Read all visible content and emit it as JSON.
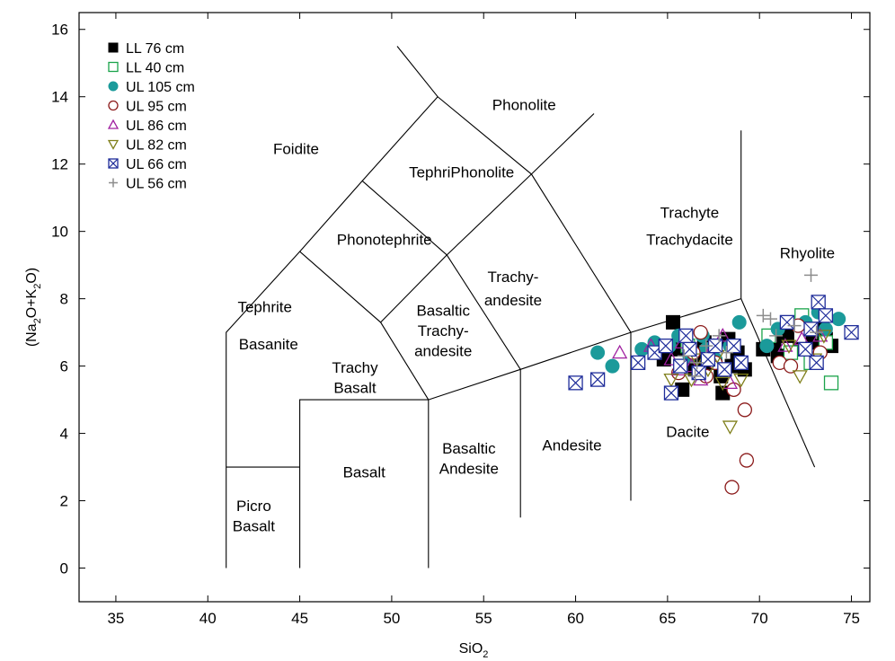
{
  "chart_data": {
    "type": "scatter",
    "xlabel": "SiO",
    "xlabel_sub": "2",
    "ylabel_parts": [
      "(Na",
      "2",
      "O+K",
      "2",
      "O)"
    ],
    "xlim": [
      33,
      76
    ],
    "ylim": [
      -1,
      16.5
    ],
    "x_ticks": [
      35,
      40,
      45,
      50,
      55,
      60,
      65,
      70,
      75
    ],
    "y_ticks": [
      0,
      2,
      4,
      6,
      8,
      10,
      12,
      14,
      16
    ],
    "grid": false,
    "legend_position": "top-left",
    "field_boundaries": [
      [
        [
          41,
          0
        ],
        [
          41,
          7
        ],
        [
          45,
          9.4
        ],
        [
          48.4,
          11.5
        ],
        [
          52.5,
          14
        ],
        [
          57.6,
          11.7
        ],
        [
          63,
          7
        ],
        [
          69,
          8
        ],
        [
          69,
          13
        ]
      ],
      [
        [
          41,
          3
        ],
        [
          45,
          3
        ]
      ],
      [
        [
          45,
          0
        ],
        [
          45,
          5
        ],
        [
          52,
          5
        ],
        [
          52,
          0
        ]
      ],
      [
        [
          45,
          9.4
        ],
        [
          49.4,
          7.3
        ],
        [
          52,
          5
        ],
        [
          57,
          5.9
        ],
        [
          63,
          7
        ],
        [
          63,
          2
        ]
      ],
      [
        [
          57,
          5.9
        ],
        [
          57,
          1.5
        ]
      ],
      [
        [
          49.4,
          7.3
        ],
        [
          53,
          9.3
        ],
        [
          57,
          5.9
        ]
      ],
      [
        [
          53,
          9.3
        ],
        [
          57.6,
          11.7
        ],
        [
          61,
          13.5
        ]
      ],
      [
        [
          48.4,
          11.5
        ],
        [
          53,
          9.3
        ]
      ],
      [
        [
          52.5,
          14
        ],
        [
          50.3,
          15.5
        ]
      ],
      [
        [
          69,
          8
        ],
        [
          73,
          3
        ]
      ]
    ],
    "field_labels": [
      {
        "text": "Foidite",
        "x": 44.8,
        "y": 12.3
      },
      {
        "text": "Phonolite",
        "x": 57.2,
        "y": 13.6
      },
      {
        "text": "TephriPhonolite",
        "x": 53.8,
        "y": 11.6
      },
      {
        "text": "Phonotephrite",
        "x": 49.6,
        "y": 9.6
      },
      {
        "text": "Tephrite",
        "x": 43.1,
        "y": 7.6
      },
      {
        "text": "Basanite",
        "x": 43.3,
        "y": 6.5
      },
      {
        "text": "Basaltic",
        "x": 52.8,
        "y": 7.5
      },
      {
        "text": "Trachy-",
        "x": 52.8,
        "y": 6.9
      },
      {
        "text": "andesite",
        "x": 52.8,
        "y": 6.3
      },
      {
        "text": "Trachy-",
        "x": 56.6,
        "y": 8.5
      },
      {
        "text": "andesite",
        "x": 56.6,
        "y": 7.8
      },
      {
        "text": "Trachy",
        "x": 48,
        "y": 5.8
      },
      {
        "text": "Basalt",
        "x": 48,
        "y": 5.2
      },
      {
        "text": "Basalt",
        "x": 48.5,
        "y": 2.7
      },
      {
        "text": "Basaltic",
        "x": 54.2,
        "y": 3.4
      },
      {
        "text": "Andesite",
        "x": 54.2,
        "y": 2.8
      },
      {
        "text": "Andesite",
        "x": 59.8,
        "y": 3.5
      },
      {
        "text": "Dacite",
        "x": 66.1,
        "y": 3.9
      },
      {
        "text": "Trachyte",
        "x": 66.2,
        "y": 10.4
      },
      {
        "text": "Trachydacite",
        "x": 66.2,
        "y": 9.6
      },
      {
        "text": "Rhyolite",
        "x": 72.6,
        "y": 9.2
      },
      {
        "text": "Picro",
        "x": 42.5,
        "y": 1.7
      },
      {
        "text": "Basalt",
        "x": 42.5,
        "y": 1.1
      }
    ],
    "series": [
      {
        "name": "LL 76 cm",
        "marker": "square-filled",
        "color": "#000000",
        "points": [
          [
            65.3,
            7.3
          ],
          [
            64.8,
            6.2
          ],
          [
            65.5,
            6.5
          ],
          [
            66.0,
            6.8
          ],
          [
            66.5,
            5.9
          ],
          [
            67.0,
            6.7
          ],
          [
            67.5,
            6.1
          ],
          [
            68.0,
            5.2
          ],
          [
            68.3,
            6.8
          ],
          [
            68.8,
            6.4
          ],
          [
            69.2,
            5.9
          ],
          [
            65.8,
            5.3
          ],
          [
            66.8,
            6.3
          ],
          [
            67.9,
            5.7
          ],
          [
            70.2,
            6.5
          ],
          [
            70.8,
            6.7
          ],
          [
            71.5,
            6.9
          ],
          [
            72.2,
            6.5
          ],
          [
            72.9,
            6.7
          ],
          [
            73.2,
            7.1
          ],
          [
            73.6,
            6.8
          ],
          [
            73.9,
            6.6
          ],
          [
            71.0,
            6.3
          ],
          [
            68.5,
            6.0
          ]
        ]
      },
      {
        "name": "LL 40 cm",
        "marker": "square-open",
        "color": "#1aa34a",
        "points": [
          [
            73.9,
            5.5
          ],
          [
            73.6,
            6.7
          ],
          [
            72.3,
            7.5
          ],
          [
            71.7,
            6.4
          ],
          [
            72.8,
            6.1
          ],
          [
            70.5,
            6.9
          ],
          [
            67.2,
            6.3
          ],
          [
            66.1,
            6.6
          ]
        ]
      },
      {
        "name": "UL 105 cm",
        "marker": "circle-filled",
        "color": "#1b9a9a",
        "points": [
          [
            61.2,
            6.4
          ],
          [
            62.0,
            6.0
          ],
          [
            63.6,
            6.5
          ],
          [
            64.3,
            6.7
          ],
          [
            65.1,
            6.6
          ],
          [
            65.6,
            6.9
          ],
          [
            66.2,
            6.3
          ],
          [
            66.9,
            6.9
          ],
          [
            67.6,
            6.2
          ],
          [
            68.4,
            6.6
          ],
          [
            68.9,
            7.3
          ],
          [
            71.0,
            7.1
          ],
          [
            72.5,
            7.3
          ],
          [
            73.2,
            7.6
          ],
          [
            73.6,
            7.1
          ],
          [
            74.3,
            7.4
          ],
          [
            70.4,
            6.6
          ],
          [
            67.1,
            6.5
          ]
        ]
      },
      {
        "name": "UL 95 cm",
        "marker": "circle-open",
        "color": "#8b1a1a",
        "points": [
          [
            68.5,
            2.4
          ],
          [
            69.3,
            3.2
          ],
          [
            69.2,
            4.7
          ],
          [
            68.6,
            5.3
          ],
          [
            67.1,
            5.7
          ],
          [
            66.4,
            6.4
          ],
          [
            67.6,
            6.1
          ],
          [
            65.6,
            5.8
          ],
          [
            71.1,
            6.1
          ],
          [
            71.7,
            6.0
          ],
          [
            72.1,
            7.2
          ],
          [
            73.3,
            6.4
          ],
          [
            66.8,
            7.0
          ]
        ]
      },
      {
        "name": "UL 86 cm",
        "marker": "triangle-up",
        "color": "#a020a0",
        "points": [
          [
            62.4,
            6.4
          ],
          [
            64.1,
            6.6
          ],
          [
            65.2,
            6.2
          ],
          [
            65.8,
            6.7
          ],
          [
            66.3,
            6.0
          ],
          [
            66.8,
            5.6
          ],
          [
            67.3,
            6.3
          ],
          [
            68.0,
            6.9
          ],
          [
            68.4,
            5.5
          ],
          [
            71.4,
            6.6
          ],
          [
            72.3,
            6.8
          ],
          [
            73.3,
            6.9
          ],
          [
            67.5,
            6.6
          ],
          [
            65.6,
            5.9
          ]
        ]
      },
      {
        "name": "UL 82 cm",
        "marker": "triangle-down",
        "color": "#7f7f1a",
        "points": [
          [
            68.4,
            4.2
          ],
          [
            68.0,
            5.5
          ],
          [
            69.0,
            5.6
          ],
          [
            66.3,
            5.6
          ],
          [
            67.2,
            5.9
          ],
          [
            65.2,
            5.6
          ],
          [
            71.6,
            6.6
          ],
          [
            72.2,
            5.7
          ],
          [
            73.0,
            6.2
          ],
          [
            73.5,
            6.9
          ],
          [
            67.7,
            6.3
          ],
          [
            66.6,
            6.2
          ]
        ]
      },
      {
        "name": "UL 66 cm",
        "marker": "square-x",
        "color": "#1f2d9a",
        "points": [
          [
            60.0,
            5.5
          ],
          [
            61.2,
            5.6
          ],
          [
            63.4,
            6.1
          ],
          [
            64.3,
            6.4
          ],
          [
            64.9,
            6.6
          ],
          [
            65.2,
            5.2
          ],
          [
            65.7,
            6.0
          ],
          [
            66.2,
            6.5
          ],
          [
            66.7,
            5.8
          ],
          [
            67.2,
            6.2
          ],
          [
            67.6,
            6.6
          ],
          [
            68.1,
            5.9
          ],
          [
            68.6,
            6.6
          ],
          [
            69.0,
            6.1
          ],
          [
            71.5,
            7.3
          ],
          [
            72.5,
            6.5
          ],
          [
            73.1,
            6.1
          ],
          [
            73.2,
            7.9
          ],
          [
            73.6,
            7.5
          ],
          [
            75.0,
            7.0
          ],
          [
            72.8,
            7.1
          ],
          [
            66.0,
            6.9
          ]
        ]
      },
      {
        "name": "UL 56 cm",
        "marker": "plus",
        "color": "#8c8c8c",
        "points": [
          [
            72.8,
            8.7
          ],
          [
            70.2,
            7.5
          ],
          [
            70.6,
            7.4
          ],
          [
            71.9,
            7.2
          ],
          [
            66.6,
            6.1
          ],
          [
            67.8,
            6.9
          ],
          [
            68.2,
            6.4
          ],
          [
            65.9,
            6.3
          ],
          [
            67.1,
            6.6
          ],
          [
            70.9,
            6.9
          ],
          [
            73.1,
            7.0
          ],
          [
            66.5,
            5.7
          ]
        ]
      }
    ]
  }
}
